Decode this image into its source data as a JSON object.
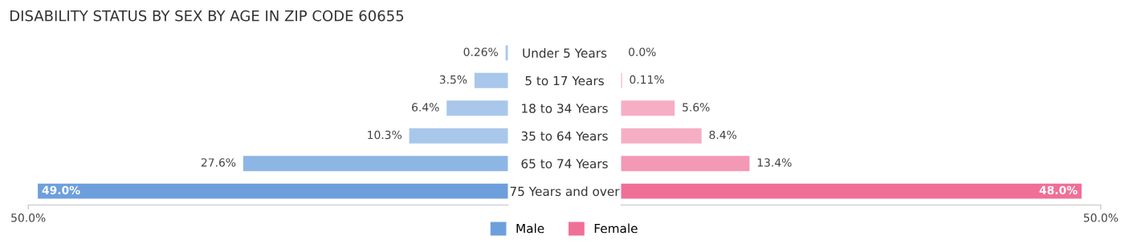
{
  "chart_data": [
    {
      "type": "bar",
      "orientation": "horizontal",
      "title": "DISABILITY STATUS BY SEX BY AGE IN ZIP CODE 60655",
      "categories": [
        "Under 5 Years",
        "5 to 17 Years",
        "18 to 34 Years",
        "35 to 64 Years",
        "65 to 74 Years",
        "75 Years and over"
      ],
      "series": [
        {
          "name": "Male",
          "color": "#6d9fdd",
          "colors": [
            "#a9c7eb",
            "#a9c7eb",
            "#a9c7eb",
            "#a9c7eb",
            "#8db6e5",
            "#6d9fdd"
          ],
          "values": [
            0.26,
            3.5,
            6.4,
            10.3,
            27.6,
            49.0
          ],
          "value_labels": [
            "0.26%",
            "3.5%",
            "6.4%",
            "10.3%",
            "27.6%",
            "49.0%"
          ]
        }
      ],
      "xlim": [
        50,
        0
      ],
      "xticks": [
        {
          "value": 50,
          "label": "50.0%"
        }
      ],
      "grid": false,
      "legend": "bottom"
    },
    {
      "type": "bar",
      "orientation": "horizontal",
      "categories": [
        null,
        null,
        null,
        null,
        null,
        null
      ],
      "series": [
        {
          "name": "Female",
          "color": "#f06f97",
          "colors": [
            "#f6aec5",
            "#f6aec5",
            "#f6aec5",
            "#f6aec5",
            "#f398b5",
            "#f06f97"
          ],
          "values": [
            0.0,
            0.11,
            5.6,
            8.4,
            13.4,
            48.0
          ],
          "value_labels": [
            "0.0%",
            "0.11%",
            "5.6%",
            "8.4%",
            "13.4%",
            "48.0%"
          ]
        }
      ],
      "xlim": [
        0,
        50
      ],
      "xticks": [
        {
          "value": 50,
          "label": "50.0%"
        }
      ],
      "grid": false,
      "legend": "bottom",
      "tick_labels": "x"
    }
  ]
}
